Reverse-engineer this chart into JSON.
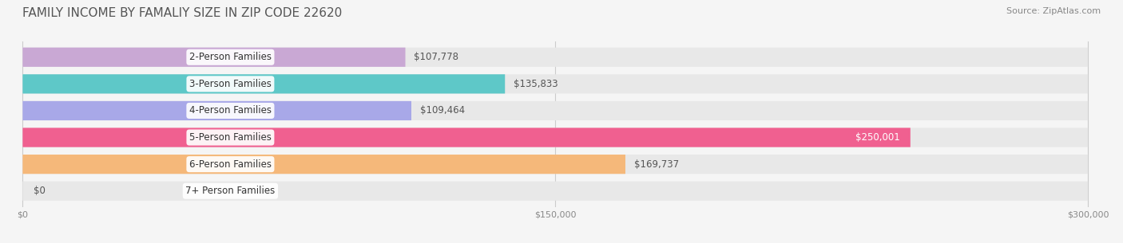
{
  "title": "FAMILY INCOME BY FAMALIY SIZE IN ZIP CODE 22620",
  "source": "Source: ZipAtlas.com",
  "categories": [
    "2-Person Families",
    "3-Person Families",
    "4-Person Families",
    "5-Person Families",
    "6-Person Families",
    "7+ Person Families"
  ],
  "values": [
    107778,
    135833,
    109464,
    250001,
    169737,
    0
  ],
  "bar_colors": [
    "#c9a8d4",
    "#5ec8c8",
    "#a8a8e8",
    "#f06090",
    "#f5b87a",
    "#f5b0b0"
  ],
  "label_colors": [
    "#555555",
    "#555555",
    "#555555",
    "#ffffff",
    "#555555",
    "#555555"
  ],
  "value_labels": [
    "$107,778",
    "$135,833",
    "$109,464",
    "$250,001",
    "$169,737",
    "$0"
  ],
  "xlim": [
    0,
    300000
  ],
  "xticks": [
    0,
    150000,
    300000
  ],
  "xticklabels": [
    "$0",
    "$150,000",
    "$300,000"
  ],
  "background_color": "#f5f5f5",
  "bar_bg_color": "#e8e8e8",
  "title_fontsize": 11,
  "source_fontsize": 8,
  "label_fontsize": 8.5,
  "value_fontsize": 8.5
}
